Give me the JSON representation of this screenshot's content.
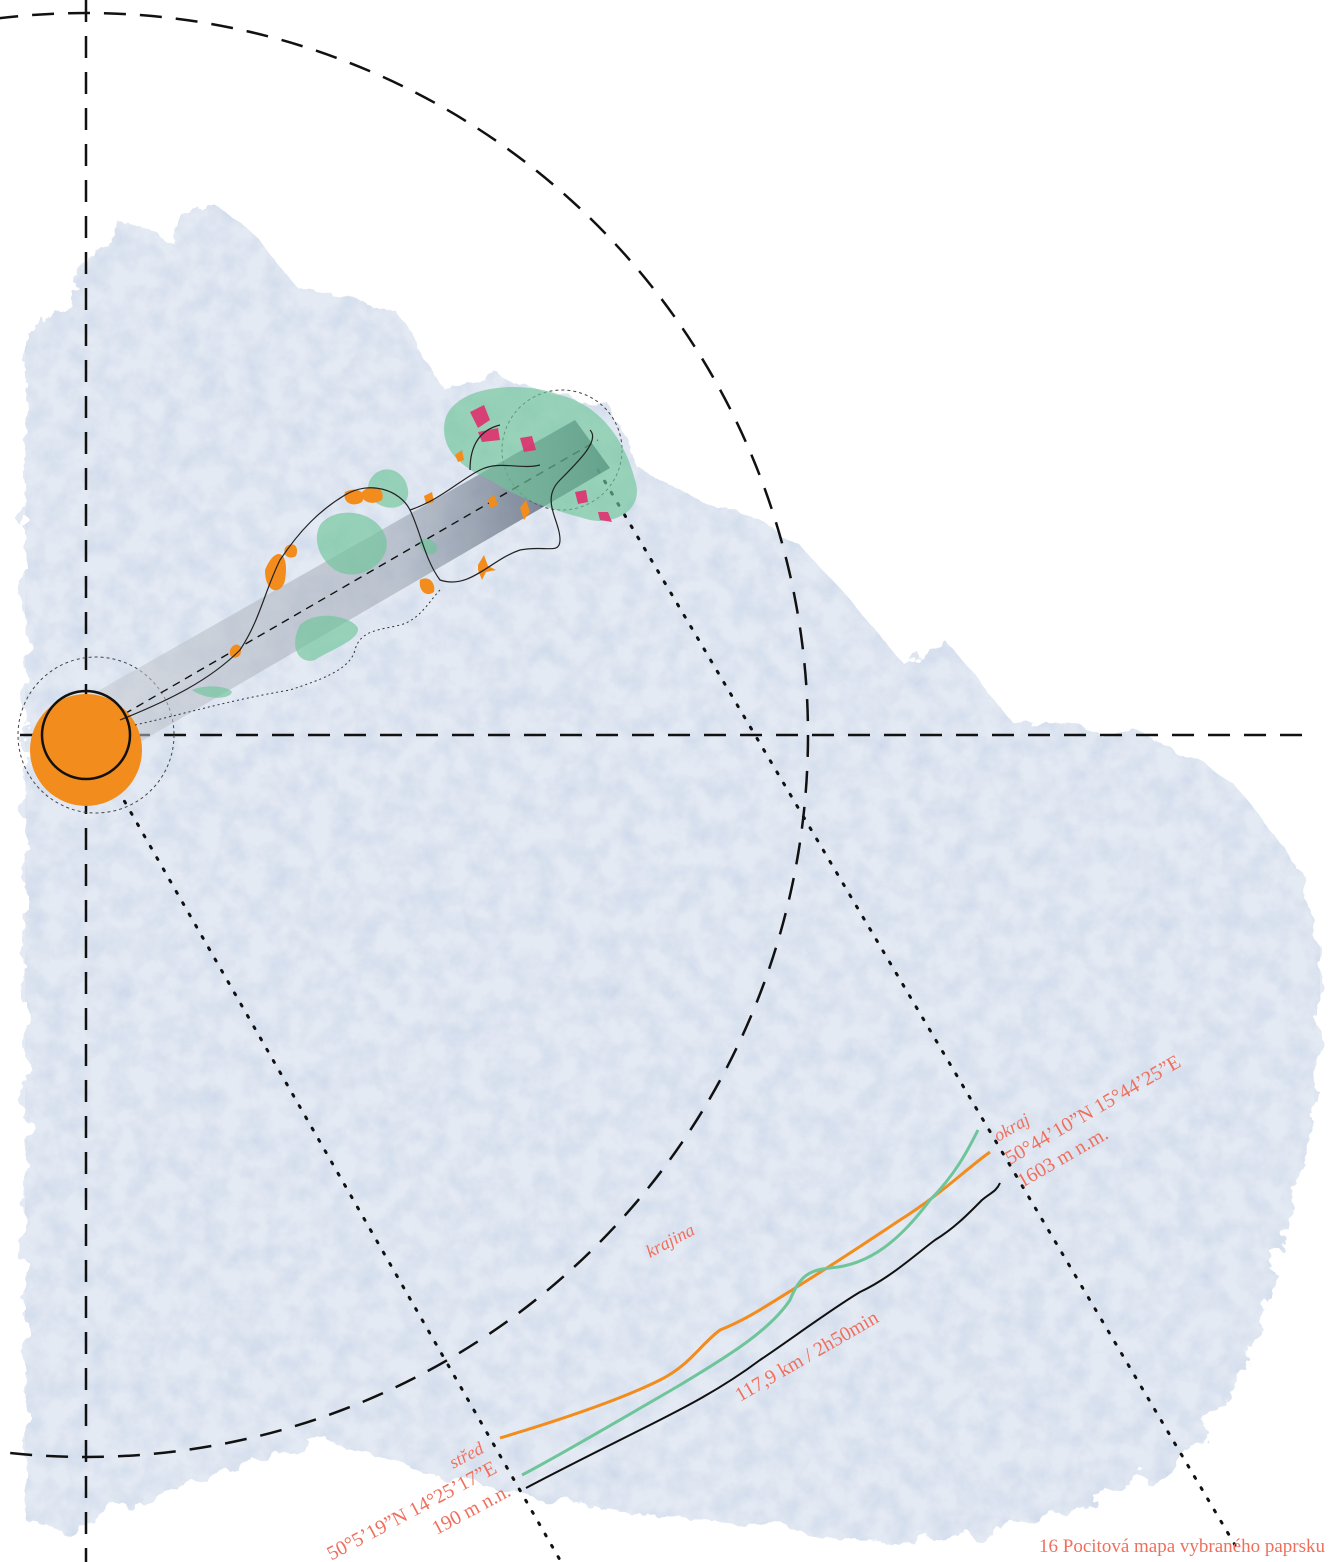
{
  "caption": "16 Pocitová mapa vybraného paprsku",
  "labels": {
    "stred": "střed",
    "stred_coords": "50°5’19”N 14°25’17”E",
    "stred_elevation": "190 m n.n.",
    "okraj": "okraj",
    "okraj_coords": "50°44’10”N 15°44’25”E",
    "okraj_elevation": "1603 m n.m.",
    "krajina": "krajina",
    "distance_time": "117,9 km / 2h50min"
  },
  "colors": {
    "label_red": "#ef6f5c",
    "orange": "#f28c1c",
    "green": "#6fc59a",
    "magenta": "#e0306e",
    "terrain": "#dde5f0",
    "line_black": "#111111"
  },
  "icons": {
    "center_target": "crosshair-circle-icon"
  }
}
